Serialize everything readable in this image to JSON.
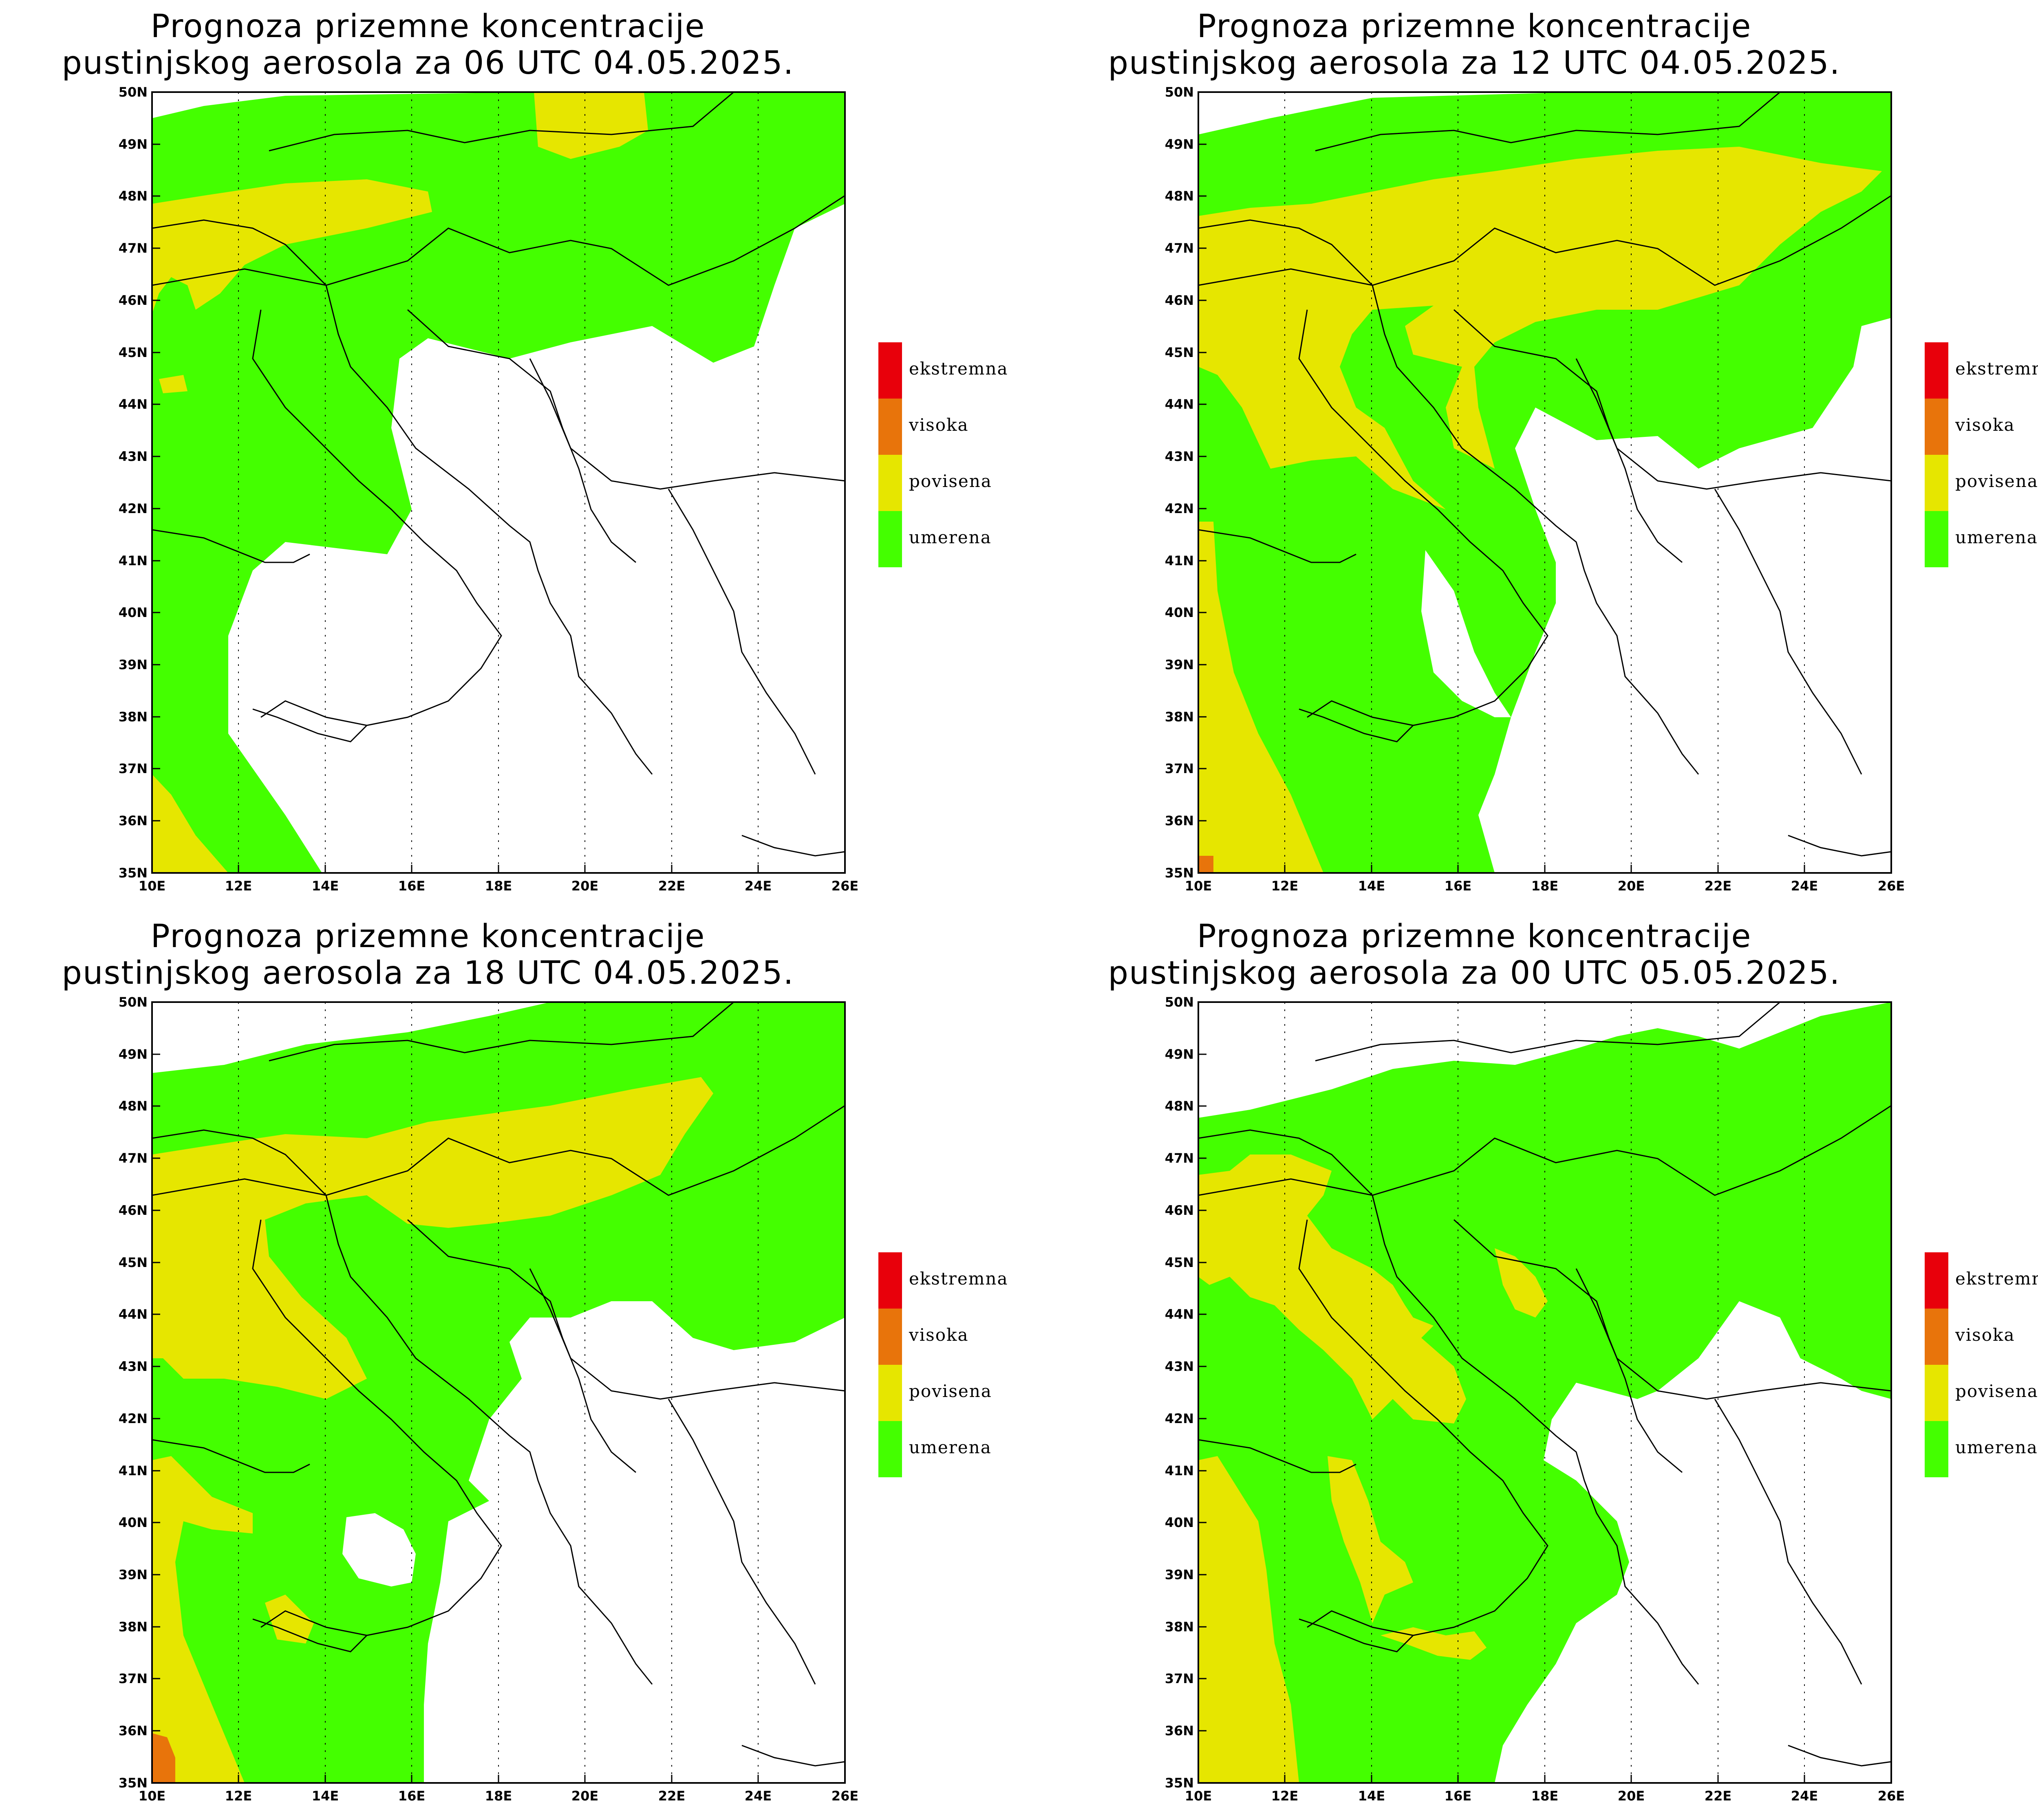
{
  "figure": {
    "panels": [
      {
        "title_line1": "Prognoza prizemne koncentracije",
        "title_line2": "pustinjskog aerosola za 06 UTC 04.05.2025."
      },
      {
        "title_line1": "Prognoza prizemne koncentracije",
        "title_line2": "pustinjskog aerosola za 12 UTC 04.05.2025."
      },
      {
        "title_line1": "Prognoza prizemne koncentracije",
        "title_line2": "pustinjskog aerosola za 18 UTC 04.05.2025."
      },
      {
        "title_line1": "Prognoza prizemne koncentracije",
        "title_line2": "pustinjskog aerosola za 00 UTC 05.05.2025."
      }
    ],
    "legend": [
      {
        "label": "ekstremna",
        "color": "#e8000b"
      },
      {
        "label": "visoka",
        "color": "#e8740b"
      },
      {
        "label": "povisena",
        "color": "#e6e600"
      },
      {
        "label": "umerena",
        "color": "#44ff00"
      }
    ],
    "lat_labels": [
      "50N",
      "49N",
      "48N",
      "47N",
      "46N",
      "45N",
      "44N",
      "43N",
      "42N",
      "41N",
      "40N",
      "39N",
      "38N",
      "37N",
      "36N",
      "35N"
    ],
    "lon_labels": [
      "10E",
      "12E",
      "14E",
      "16E",
      "18E",
      "20E",
      "22E",
      "24E",
      "26E"
    ],
    "colors": {
      "green": "#44ff00",
      "yellow": "#e6e600",
      "orange": "#e8740b",
      "red": "#e8000b"
    }
  }
}
